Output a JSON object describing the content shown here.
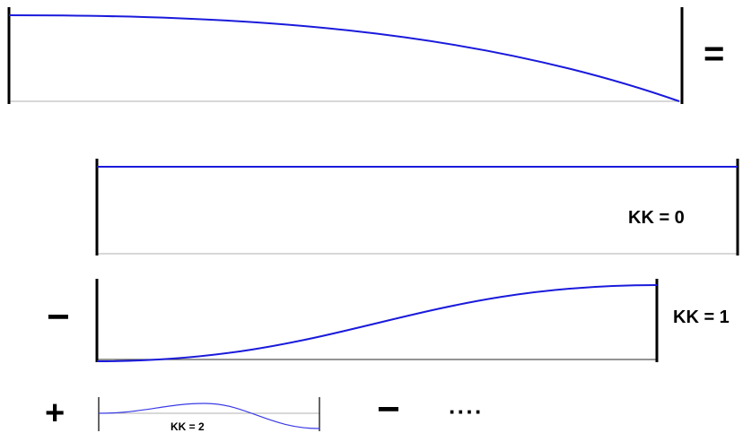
{
  "operators": {
    "equals": "=",
    "minus_1": "−",
    "plus": "+",
    "minus_2": "−",
    "ellipsis": "····"
  },
  "modes": [
    {
      "label": "KK = 0"
    },
    {
      "label": "KK = 1"
    },
    {
      "label": "KK = 2"
    }
  ],
  "colors": {
    "curve": "#1a1adc",
    "bar": "#000000",
    "baseline": "#b0b0b0"
  }
}
